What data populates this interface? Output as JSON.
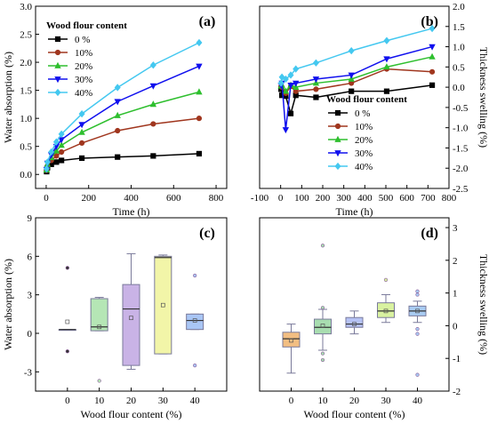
{
  "chart_data": [
    {
      "id": "a",
      "type": "line",
      "panel_label": "(a)",
      "xlabel": "Time (h)",
      "ylabel": "Water absorption (%)",
      "xlim": [
        -50,
        850
      ],
      "ylim": [
        -0.25,
        3.0
      ],
      "x_ticks": [
        0,
        200,
        400,
        600,
        800
      ],
      "y_ticks": [
        0.0,
        0.5,
        1.0,
        1.5,
        2.0,
        2.5,
        3.0
      ],
      "y_tick_labels": [
        "0.0",
        "0.5",
        "1.0",
        "1.5",
        "2.0",
        "2.5",
        "3.0"
      ],
      "legend_title": "Wood flour content",
      "legend_position": "top-left",
      "x": [
        2,
        6,
        24,
        48,
        72,
        168,
        336,
        504,
        720
      ],
      "series": [
        {
          "name": "0 %",
          "color": "#000000",
          "marker": "square",
          "values": [
            0.05,
            0.12,
            0.18,
            0.22,
            0.25,
            0.29,
            0.31,
            0.33,
            0.37
          ]
        },
        {
          "name": "10%",
          "color": "#A0361E",
          "marker": "circle",
          "values": [
            0.07,
            0.15,
            0.25,
            0.33,
            0.4,
            0.56,
            0.78,
            0.9,
            1.0
          ]
        },
        {
          "name": "20%",
          "color": "#2EBF2E",
          "marker": "triangle",
          "values": [
            0.08,
            0.18,
            0.3,
            0.42,
            0.52,
            0.75,
            1.05,
            1.25,
            1.47
          ]
        },
        {
          "name": "30%",
          "color": "#1010EE",
          "marker": "triangle-down",
          "values": [
            0.09,
            0.2,
            0.35,
            0.5,
            0.62,
            0.89,
            1.3,
            1.58,
            1.93
          ]
        },
        {
          "name": "40%",
          "color": "#44C8F0",
          "marker": "diamond",
          "values": [
            0.1,
            0.22,
            0.4,
            0.58,
            0.72,
            1.08,
            1.55,
            1.95,
            2.35
          ]
        }
      ]
    },
    {
      "id": "b",
      "type": "line",
      "panel_label": "(b)",
      "xlabel": "Time (h)",
      "ylabel": "Thickness swelling (%)",
      "xlim": [
        -100,
        800
      ],
      "ylim": [
        -2.5,
        2.0
      ],
      "x_ticks": [
        -100,
        0,
        100,
        200,
        300,
        400,
        500,
        600,
        700,
        800
      ],
      "y_ticks": [
        -2.5,
        -2.0,
        -1.5,
        -1.0,
        -0.5,
        0.0,
        0.5,
        1.0,
        1.5,
        2.0
      ],
      "y_tick_labels": [
        "-2.5",
        "-2.0",
        "-1.5",
        "-1.0",
        "-0.5",
        "0.0",
        "0.5",
        "1.0",
        "1.5",
        "2.0"
      ],
      "legend_title": "Wood flour content",
      "legend_position": "center-right",
      "x": [
        2,
        6,
        24,
        48,
        72,
        168,
        336,
        504,
        720
      ],
      "series": [
        {
          "name": "0 %",
          "color": "#000000",
          "marker": "square",
          "values": [
            -0.05,
            -0.2,
            -0.22,
            -0.65,
            -0.2,
            -0.25,
            -0.1,
            -0.1,
            0.05
          ]
        },
        {
          "name": "10%",
          "color": "#A0361E",
          "marker": "circle",
          "values": [
            0.02,
            0.0,
            -0.15,
            0.02,
            -0.1,
            -0.05,
            0.1,
            0.45,
            0.38
          ]
        },
        {
          "name": "20%",
          "color": "#2EBF2E",
          "marker": "triangle",
          "values": [
            0.03,
            0.05,
            -0.1,
            0.05,
            0.0,
            0.1,
            0.2,
            0.5,
            0.75
          ]
        },
        {
          "name": "30%",
          "color": "#1010EE",
          "marker": "triangle-down",
          "values": [
            0.05,
            0.1,
            -1.05,
            0.05,
            0.1,
            0.2,
            0.3,
            0.7,
            1.0
          ]
        },
        {
          "name": "40%",
          "color": "#44C8F0",
          "marker": "diamond",
          "values": [
            0.1,
            0.25,
            0.2,
            0.3,
            0.45,
            0.6,
            0.9,
            1.15,
            1.45
          ]
        }
      ]
    },
    {
      "id": "c",
      "type": "box",
      "panel_label": "(c)",
      "xlabel": "Wood flour content (%)",
      "ylabel": "Water absorption (%)",
      "xlim": [
        -10,
        50
      ],
      "ylim": [
        -4.5,
        9
      ],
      "x_ticks": [
        0,
        10,
        20,
        30,
        40
      ],
      "y_ticks": [
        -3,
        0,
        3,
        6,
        9
      ],
      "y_tick_labels": [
        "-3",
        "0",
        "3",
        "6",
        "9"
      ],
      "categories": [
        "0",
        "10",
        "20",
        "30",
        "40"
      ],
      "boxes": [
        {
          "x": 0,
          "q1": 0.3,
          "median": 0.3,
          "q3": 0.3,
          "mean": 0.9,
          "whisker_low": 0.3,
          "whisker_high": 0.3,
          "outliers": [
            5.1,
            -1.4
          ],
          "color": "#333333"
        },
        {
          "x": 10,
          "q1": 0.2,
          "median": 0.5,
          "q3": 2.7,
          "mean": 0.5,
          "whisker_low": 0.2,
          "whisker_high": 2.8,
          "outliers": [
            -3.7
          ],
          "color": "#B5E6B5"
        },
        {
          "x": 20,
          "q1": -2.5,
          "median": 1.9,
          "q3": 3.8,
          "mean": 1.2,
          "whisker_low": -2.8,
          "whisker_high": 6.2,
          "outliers": [],
          "color": "#C9B3E6"
        },
        {
          "x": 30,
          "q1": -1.6,
          "median": 5.9,
          "q3": 6.0,
          "mean": 2.2,
          "whisker_low": -1.6,
          "whisker_high": 6.1,
          "outliers": [],
          "color": "#F2F5A8"
        },
        {
          "x": 40,
          "q1": 0.3,
          "median": 1.0,
          "q3": 1.5,
          "mean": 1.0,
          "whisker_low": 0.3,
          "whisker_high": 1.5,
          "outliers": [
            4.5,
            -2.5
          ],
          "color": "#A9C6F5"
        }
      ]
    },
    {
      "id": "d",
      "type": "box",
      "panel_label": "(d)",
      "xlabel": "Wood flour content (%)",
      "ylabel": "Thickness swelling (%)",
      "xlim": [
        -10,
        50
      ],
      "ylim": [
        -2,
        3.3
      ],
      "x_ticks": [
        0,
        10,
        20,
        30,
        40
      ],
      "y_ticks": [
        -2,
        -1,
        0,
        1,
        2,
        3
      ],
      "y_tick_labels": [
        "-2",
        "-1",
        "0",
        "1",
        "2",
        "3"
      ],
      "categories": [
        "0",
        "10",
        "20",
        "30",
        "40"
      ],
      "boxes": [
        {
          "x": 0,
          "q1": -0.65,
          "median": -0.4,
          "q3": -0.2,
          "mean": -0.45,
          "whisker_low": -1.45,
          "whisker_high": 0.05,
          "outliers": [],
          "color": "#F2BE82"
        },
        {
          "x": 10,
          "q1": -0.25,
          "median": -0.05,
          "q3": 0.2,
          "mean": 0.0,
          "whisker_low": -0.75,
          "whisker_high": 0.5,
          "outliers": [
            2.45,
            -1.05,
            -0.85,
            0.55
          ],
          "color": "#A8DDB0"
        },
        {
          "x": 20,
          "q1": -0.05,
          "median": 0.05,
          "q3": 0.25,
          "mean": 0.05,
          "whisker_low": -0.25,
          "whisker_high": 0.45,
          "outliers": [],
          "color": "#B6C2F5"
        },
        {
          "x": 30,
          "q1": 0.25,
          "median": 0.45,
          "q3": 0.7,
          "mean": 0.45,
          "whisker_low": 0.1,
          "whisker_high": 0.95,
          "outliers": [
            1.4
          ],
          "color": "#D9F2A0"
        },
        {
          "x": 40,
          "q1": 0.3,
          "median": 0.45,
          "q3": 0.6,
          "mean": 0.45,
          "whisker_low": 0.1,
          "whisker_high": 0.75,
          "outliers": [
            1.05,
            0.95,
            -0.1,
            -0.25,
            -1.5
          ],
          "color": "#A8CBF2"
        }
      ]
    }
  ]
}
